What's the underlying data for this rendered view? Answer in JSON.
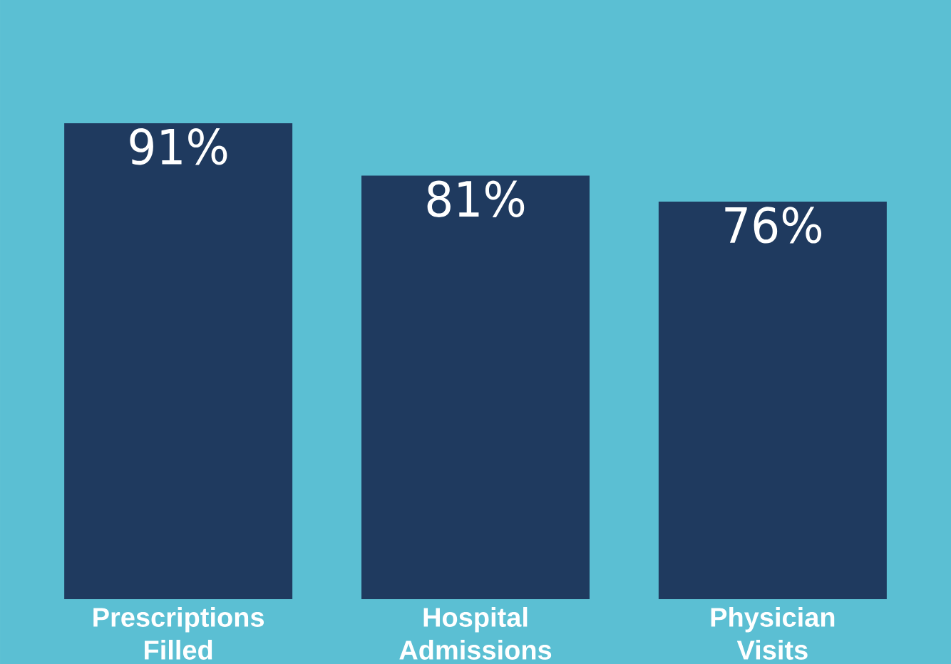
{
  "chart_data": {
    "type": "bar",
    "categories": [
      "Prescriptions Filled",
      "Hospital Admissions",
      "Physician Visits"
    ],
    "values": [
      91,
      81,
      76
    ],
    "value_labels": [
      "91%",
      "81%",
      "76%"
    ],
    "color": "#1f3a5f"
  }
}
